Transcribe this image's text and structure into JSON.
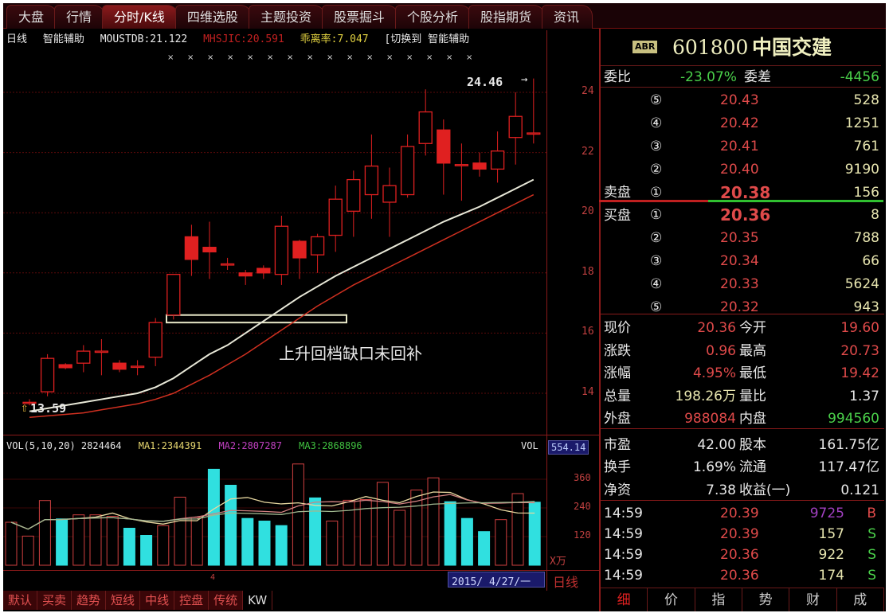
{
  "top_tabs": [
    "大盘",
    "行情",
    "分时/K线",
    "四维选股",
    "主题投资",
    "股票掘斗",
    "个股分析",
    "股指期货",
    "资讯"
  ],
  "active_tab": 2,
  "infoline": {
    "period": "日线",
    "assist": "智能辅助",
    "indicator1": "MOUSTDB:21.122",
    "indicator2": "MHSJIC:20.591",
    "bias": "乖离率:7.047",
    "switch": "[切换到 智能辅助"
  },
  "chart": {
    "annotation": "上升回档缺口未回补",
    "high_label": "24.46",
    "low_label": "13.59",
    "price_ticks": [
      "24",
      "22",
      "20",
      "18",
      "16",
      "14"
    ],
    "colors": {
      "up": "#e02020",
      "down": "#e02020",
      "ma_fast": "#e8e8d8",
      "ma_slow": "#d03020",
      "grid": "#5a0a0a"
    }
  },
  "chart_data": {
    "type": "candlestick",
    "ylim": [
      13,
      25
    ],
    "candles": [
      {
        "o": 13.7,
        "h": 13.8,
        "l": 13.6,
        "c": 13.7
      },
      {
        "o": 14.05,
        "h": 15.3,
        "l": 13.9,
        "c": 15.16
      },
      {
        "o": 14.95,
        "h": 15.0,
        "l": 14.8,
        "c": 14.85
      },
      {
        "o": 15.0,
        "h": 15.6,
        "l": 14.7,
        "c": 15.4
      },
      {
        "o": 15.4,
        "h": 15.8,
        "l": 14.6,
        "c": 15.4
      },
      {
        "o": 15.0,
        "h": 15.1,
        "l": 14.7,
        "c": 14.8
      },
      {
        "o": 14.9,
        "h": 15.1,
        "l": 14.6,
        "c": 14.9
      },
      {
        "o": 15.2,
        "h": 16.5,
        "l": 14.9,
        "c": 16.35
      },
      {
        "o": 16.6,
        "h": 17.95,
        "l": 16.45,
        "c": 17.95
      },
      {
        "o": 19.2,
        "h": 19.6,
        "l": 17.9,
        "c": 18.45
      },
      {
        "o": 18.85,
        "h": 19.7,
        "l": 17.8,
        "c": 18.7
      },
      {
        "o": 18.3,
        "h": 18.5,
        "l": 18.1,
        "c": 18.3
      },
      {
        "o": 18.0,
        "h": 18.1,
        "l": 17.6,
        "c": 17.9
      },
      {
        "o": 18.15,
        "h": 18.25,
        "l": 17.8,
        "c": 18.0
      },
      {
        "o": 17.95,
        "h": 19.9,
        "l": 17.6,
        "c": 19.55
      },
      {
        "o": 19.05,
        "h": 19.1,
        "l": 17.8,
        "c": 18.5
      },
      {
        "o": 18.6,
        "h": 19.3,
        "l": 18.0,
        "c": 19.2
      },
      {
        "o": 19.25,
        "h": 20.9,
        "l": 18.7,
        "c": 20.45
      },
      {
        "o": 20.05,
        "h": 21.4,
        "l": 19.2,
        "c": 21.1
      },
      {
        "o": 20.6,
        "h": 22.6,
        "l": 19.8,
        "c": 21.55
      },
      {
        "o": 20.35,
        "h": 21.5,
        "l": 19.2,
        "c": 20.9
      },
      {
        "o": 20.6,
        "h": 22.6,
        "l": 20.5,
        "c": 22.2
      },
      {
        "o": 22.3,
        "h": 24.1,
        "l": 21.9,
        "c": 23.35
      },
      {
        "o": 22.75,
        "h": 23.1,
        "l": 20.6,
        "c": 21.65
      },
      {
        "o": 21.6,
        "h": 22.3,
        "l": 20.4,
        "c": 21.6
      },
      {
        "o": 21.65,
        "h": 22.0,
        "l": 21.2,
        "c": 21.45
      },
      {
        "o": 21.45,
        "h": 22.7,
        "l": 21.0,
        "c": 22.05
      },
      {
        "o": 22.5,
        "h": 24.0,
        "l": 21.6,
        "c": 23.2
      },
      {
        "o": 22.65,
        "h": 24.46,
        "l": 22.3,
        "c": 22.65
      }
    ],
    "ma_fast": [
      13.4,
      13.5,
      13.6,
      13.7,
      13.8,
      13.9,
      14.0,
      14.2,
      14.5,
      14.9,
      15.3,
      15.6,
      16.0,
      16.4,
      16.8,
      17.2,
      17.55,
      17.9,
      18.2,
      18.5,
      18.8,
      19.1,
      19.4,
      19.7,
      19.95,
      20.2,
      20.5,
      20.8,
      21.1
    ],
    "ma_slow": [
      13.2,
      13.25,
      13.3,
      13.35,
      13.45,
      13.55,
      13.65,
      13.8,
      14.0,
      14.3,
      14.6,
      14.95,
      15.3,
      15.7,
      16.1,
      16.5,
      16.9,
      17.25,
      17.6,
      17.9,
      18.2,
      18.5,
      18.8,
      19.1,
      19.4,
      19.7,
      20.0,
      20.3,
      20.6
    ],
    "gap_zone": [
      16.35,
      16.6
    ]
  },
  "volume": {
    "header": "VOL(5,10,20) 2824464",
    "ma1": "MA1:2344391",
    "ma2": "MA2:2807287",
    "ma3": "MA3:2868896",
    "label": "VOL",
    "current": "554.14",
    "unit": "X万",
    "ticks": [
      "360",
      "240",
      "120"
    ],
    "ylim": [
      0,
      480
    ],
    "bars": [
      180,
      122,
      271,
      194,
      211,
      211,
      205,
      155,
      125,
      166,
      285,
      200,
      402,
      335,
      196,
      185,
      166,
      424,
      282,
      185,
      272,
      275,
      347,
      230,
      315,
      366,
      266,
      196,
      141,
      191,
      300,
      264
    ],
    "down": [
      false,
      false,
      false,
      true,
      false,
      false,
      false,
      true,
      true,
      false,
      false,
      false,
      true,
      true,
      true,
      true,
      true,
      false,
      true,
      false,
      false,
      false,
      false,
      false,
      false,
      false,
      true,
      true,
      true,
      false,
      false,
      true
    ]
  },
  "datebar": {
    "marker": "4",
    "date": "2015/ 4/27/一",
    "period": "日线"
  },
  "bottom_tabs": [
    "默认",
    "买卖",
    "趋势",
    "短线",
    "中线",
    "控盘",
    "传统",
    "KW"
  ],
  "quote": {
    "badge": "ABR",
    "code": "601800",
    "name": "中国交建",
    "weibi_label": "委比",
    "weibi": "-23.07%",
    "weicha_label": "委差",
    "weicha": "-4456",
    "sell_label": "卖盘",
    "buy_label": "买盘",
    "sells": [
      {
        "lvl": "⑤",
        "p": "20.43",
        "v": "528"
      },
      {
        "lvl": "④",
        "p": "20.42",
        "v": "1251"
      },
      {
        "lvl": "③",
        "p": "20.41",
        "v": "761"
      },
      {
        "lvl": "②",
        "p": "20.40",
        "v": "9190"
      },
      {
        "lvl": "①",
        "p": "20.38",
        "v": "156"
      }
    ],
    "buys": [
      {
        "lvl": "①",
        "p": "20.36",
        "v": "8"
      },
      {
        "lvl": "②",
        "p": "20.35",
        "v": "788"
      },
      {
        "lvl": "③",
        "p": "20.34",
        "v": "66"
      },
      {
        "lvl": "④",
        "p": "20.33",
        "v": "5624"
      },
      {
        "lvl": "⑤",
        "p": "20.32",
        "v": "943"
      }
    ],
    "stats": [
      {
        "l1": "现价",
        "v1": "20.36",
        "c1": "red",
        "l2": "今开",
        "v2": "19.60",
        "c2": "red"
      },
      {
        "l1": "涨跌",
        "v1": "0.96",
        "c1": "red",
        "l2": "最高",
        "v2": "20.73",
        "c2": "red"
      },
      {
        "l1": "涨幅",
        "v1": "4.95%",
        "c1": "red",
        "l2": "最低",
        "v2": "19.42",
        "c2": "red"
      },
      {
        "l1": "总量",
        "v1": "198.26万",
        "c1": "yel",
        "l2": "量比",
        "v2": "1.37",
        "c2": "wht"
      },
      {
        "l1": "外盘",
        "v1": "988084",
        "c1": "red",
        "l2": "内盘",
        "v2": "994560",
        "c2": "grn"
      },
      {
        "l1": "市盈",
        "v1": "42.00",
        "c1": "wht",
        "l2": "股本",
        "v2": "161.75亿",
        "c2": "wht"
      },
      {
        "l1": "换手",
        "v1": "1.69%",
        "c1": "wht",
        "l2": "流通",
        "v2": "117.47亿",
        "c2": "wht"
      },
      {
        "l1": "净资",
        "v1": "7.38",
        "c1": "wht",
        "l2": "收益(一)",
        "v2": "0.121",
        "c2": "wht"
      }
    ],
    "ticks": [
      {
        "t": "14:59",
        "p": "20.39",
        "v": "9725",
        "s": "B",
        "vc": "#a040c0",
        "sc": "#e04a4a"
      },
      {
        "t": "14:59",
        "p": "20.39",
        "v": "157",
        "s": "S",
        "vc": "#e8e6b0",
        "sc": "#4ad04a"
      },
      {
        "t": "14:59",
        "p": "20.36",
        "v": "922",
        "s": "S",
        "vc": "#e8e6b0",
        "sc": "#4ad04a"
      },
      {
        "t": "14:59",
        "p": "20.36",
        "v": "174",
        "s": "S",
        "vc": "#e8e6b0",
        "sc": "#4ad04a"
      }
    ],
    "tabs": [
      "细",
      "价",
      "指",
      "势",
      "财",
      "成"
    ]
  }
}
